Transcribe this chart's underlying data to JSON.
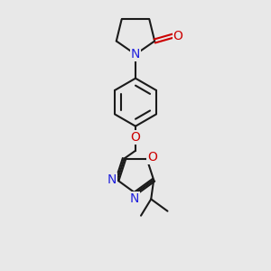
{
  "bg_color": "#e8e8e8",
  "bond_color": "#1a1a1a",
  "N_color": "#2222dd",
  "O_color": "#cc0000",
  "bond_width": 1.5,
  "figsize": [
    3.0,
    3.0
  ],
  "dpi": 100,
  "xlim": [
    0,
    10
  ],
  "ylim": [
    0,
    10
  ]
}
